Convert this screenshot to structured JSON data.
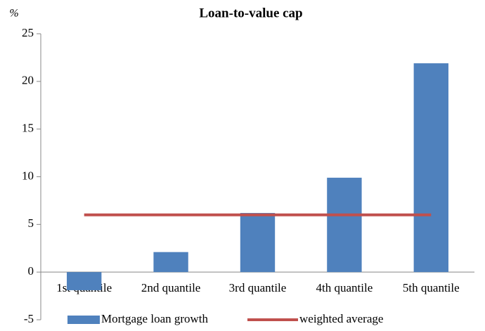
{
  "chart_data": {
    "type": "bar",
    "title": "Loan-to-value cap",
    "y_label": "%",
    "categories": [
      "1st quantile",
      "2nd quantile",
      "3rd quantile",
      "4th quantile",
      "5th quantile"
    ],
    "series": [
      {
        "name": "Mortgage loan growth",
        "type": "bar",
        "color": "#4f81bd",
        "values": [
          -1.9,
          2.1,
          6.2,
          9.9,
          21.9
        ]
      },
      {
        "name": "weighted average",
        "type": "line",
        "color": "#c0504d",
        "values": [
          6.0,
          6.0,
          6.0,
          6.0,
          6.0
        ]
      }
    ],
    "ylim": [
      -5,
      25
    ],
    "yticks": [
      -5,
      0,
      5,
      10,
      15,
      20,
      25
    ],
    "grid": false
  }
}
